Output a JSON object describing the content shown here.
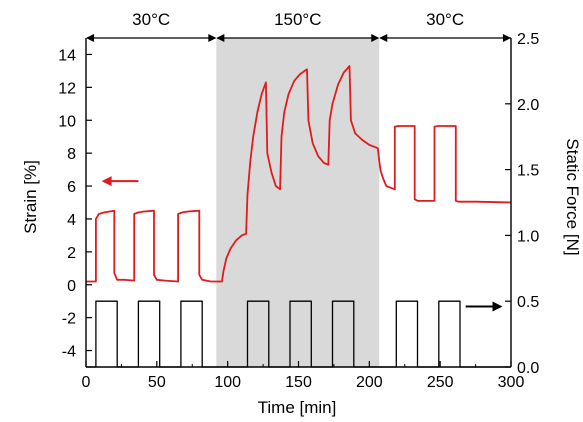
{
  "chart_data": {
    "type": "line",
    "xlabel": "Time [min]",
    "ylabel_left": "Strain [%]",
    "ylabel_right": "Static Force [N]",
    "xlim": [
      0,
      300
    ],
    "ylim_left": [
      -5,
      15
    ],
    "ylim_right": [
      0.0,
      2.5
    ],
    "x_ticks": [
      "0",
      "50",
      "100",
      "150",
      "200",
      "250",
      "300"
    ],
    "y_left_ticks": [
      "-4",
      "-2",
      "0",
      "2",
      "4",
      "6",
      "8",
      "10",
      "12",
      "14"
    ],
    "y_right_ticks": [
      "0.0",
      "0.5",
      "1.0",
      "1.5",
      "2.0",
      "2.5"
    ],
    "regions": [
      {
        "label": "30°C",
        "x_start": 0,
        "x_end": 92,
        "shaded": false
      },
      {
        "label": "150°C",
        "x_start": 92,
        "x_end": 207,
        "shaded": true
      },
      {
        "label": "30°C",
        "x_start": 207,
        "x_end": 300,
        "shaded": false
      }
    ],
    "shade_color": "#d9d9d9",
    "series": [
      {
        "axis": "left",
        "color": "#e31a1c",
        "points": [
          [
            0,
            0.2
          ],
          [
            7,
            0.2
          ],
          [
            7,
            4.0
          ],
          [
            9,
            4.3
          ],
          [
            13,
            4.4
          ],
          [
            20,
            4.5
          ],
          [
            20,
            0.7
          ],
          [
            22,
            0.3
          ],
          [
            27,
            0.3
          ],
          [
            34,
            0.25
          ],
          [
            34,
            4.3
          ],
          [
            37,
            4.4
          ],
          [
            41,
            4.45
          ],
          [
            48,
            4.5
          ],
          [
            48,
            0.6
          ],
          [
            50,
            0.3
          ],
          [
            56,
            0.25
          ],
          [
            65,
            0.2
          ],
          [
            65,
            4.3
          ],
          [
            68,
            4.4
          ],
          [
            72,
            4.45
          ],
          [
            80,
            4.5
          ],
          [
            80,
            0.6
          ],
          [
            82,
            0.3
          ],
          [
            88,
            0.2
          ],
          [
            96,
            0.2
          ],
          [
            97,
            0.8
          ],
          [
            99,
            1.6
          ],
          [
            102,
            2.2
          ],
          [
            106,
            2.7
          ],
          [
            110,
            3.0
          ],
          [
            113,
            3.1
          ],
          [
            114,
            5.5
          ],
          [
            116,
            7.5
          ],
          [
            118,
            9.0
          ],
          [
            121,
            10.5
          ],
          [
            124,
            11.6
          ],
          [
            127,
            12.3
          ],
          [
            128,
            8.0
          ],
          [
            131,
            6.8
          ],
          [
            134,
            6.0
          ],
          [
            137,
            5.8
          ],
          [
            138,
            9.0
          ],
          [
            140,
            10.5
          ],
          [
            143,
            11.6
          ],
          [
            147,
            12.4
          ],
          [
            151,
            12.8
          ],
          [
            156,
            13.1
          ],
          [
            157,
            10.0
          ],
          [
            160,
            8.6
          ],
          [
            164,
            7.8
          ],
          [
            168,
            7.4
          ],
          [
            171,
            7.3
          ],
          [
            172,
            10.0
          ],
          [
            174,
            11.0
          ],
          [
            178,
            12.2
          ],
          [
            182,
            12.9
          ],
          [
            186,
            13.3
          ],
          [
            187,
            10.0
          ],
          [
            190,
            9.2
          ],
          [
            195,
            8.8
          ],
          [
            200,
            8.5
          ],
          [
            206,
            8.3
          ],
          [
            207,
            7.5
          ],
          [
            208,
            6.9
          ],
          [
            210,
            6.4
          ],
          [
            212,
            6.0
          ],
          [
            215,
            5.9
          ],
          [
            218,
            5.8
          ],
          [
            218,
            9.6
          ],
          [
            220,
            9.65
          ],
          [
            232,
            9.65
          ],
          [
            232,
            5.2
          ],
          [
            234,
            5.1
          ],
          [
            246,
            5.1
          ],
          [
            246,
            9.6
          ],
          [
            248,
            9.65
          ],
          [
            261,
            9.65
          ],
          [
            261,
            5.1
          ],
          [
            263,
            5.05
          ],
          [
            275,
            5.05
          ],
          [
            300,
            5.0
          ]
        ]
      },
      {
        "axis": "right",
        "color": "#000000",
        "points": [
          [
            0,
            0.0
          ],
          [
            7,
            0.0
          ],
          [
            7,
            0.5
          ],
          [
            22,
            0.5
          ],
          [
            22,
            0.0
          ],
          [
            37,
            0.0
          ],
          [
            37,
            0.5
          ],
          [
            52,
            0.5
          ],
          [
            52,
            0.0
          ],
          [
            67,
            0.0
          ],
          [
            67,
            0.5
          ],
          [
            82,
            0.5
          ],
          [
            82,
            0.0
          ],
          [
            114,
            0.0
          ],
          [
            114,
            0.5
          ],
          [
            129,
            0.5
          ],
          [
            129,
            0.0
          ],
          [
            144,
            0.0
          ],
          [
            144,
            0.5
          ],
          [
            159,
            0.5
          ],
          [
            159,
            0.0
          ],
          [
            174,
            0.0
          ],
          [
            174,
            0.5
          ],
          [
            189,
            0.5
          ],
          [
            189,
            0.0
          ],
          [
            219,
            0.0
          ],
          [
            219,
            0.5
          ],
          [
            234,
            0.5
          ],
          [
            234,
            0.0
          ],
          [
            249,
            0.0
          ],
          [
            249,
            0.5
          ],
          [
            264,
            0.5
          ],
          [
            264,
            0.0
          ],
          [
            300,
            0.0
          ]
        ]
      }
    ],
    "annotations": [
      {
        "type": "arrow",
        "direction": "left",
        "color": "#e31a1c",
        "axis": "left",
        "x_from": 37,
        "x_to": 11,
        "y": 6.3
      },
      {
        "type": "arrow",
        "direction": "right",
        "color": "#000000",
        "axis": "right",
        "x_from": 268,
        "x_to": 294,
        "y": 0.46
      }
    ]
  }
}
